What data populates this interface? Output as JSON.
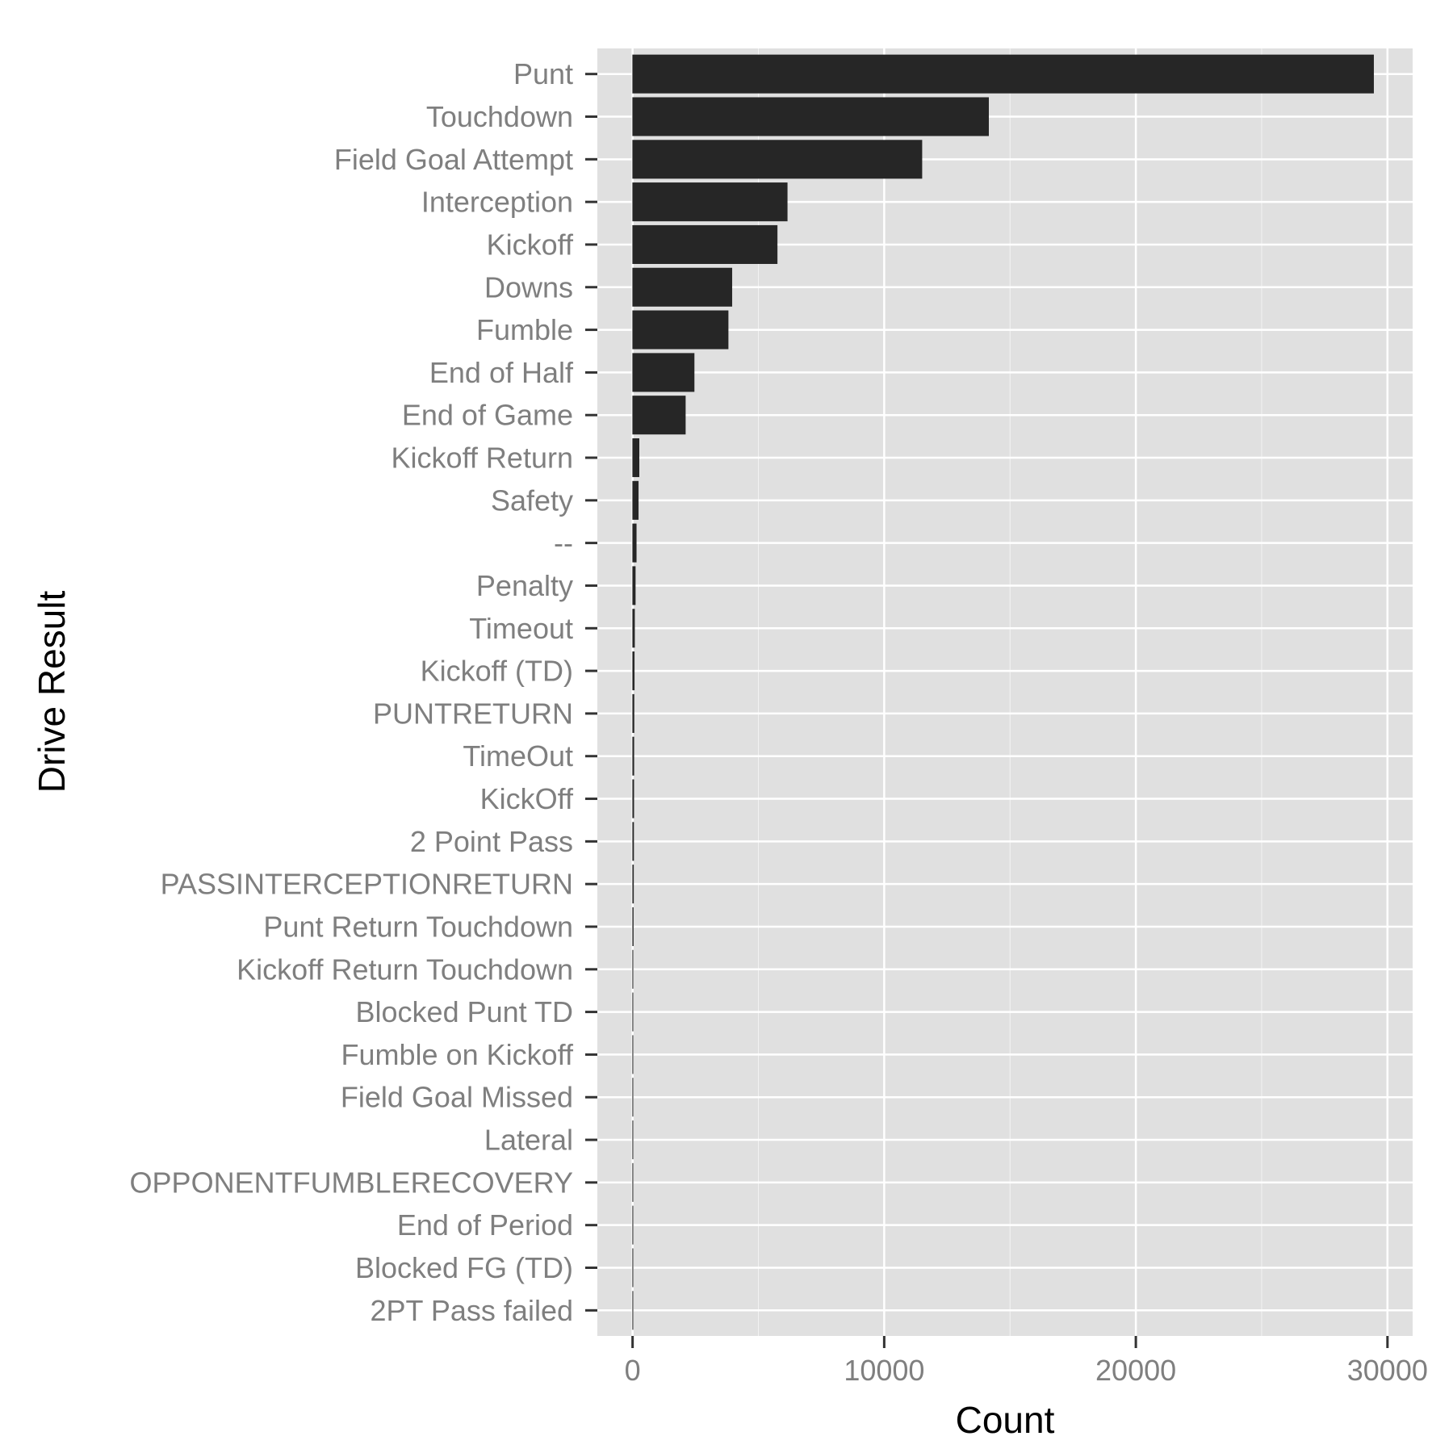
{
  "chart_data": {
    "type": "bar",
    "orientation": "horizontal",
    "xlabel": "Count",
    "ylabel": "Drive Result",
    "xlim": [
      -1400,
      31000
    ],
    "x_ticks": [
      0,
      10000,
      20000,
      30000
    ],
    "x_tick_labels": [
      "0",
      "10000",
      "20000",
      "30000"
    ],
    "grid": true,
    "legend": "none",
    "colors": {
      "bar": "#262626",
      "panel": "#e0e0e0",
      "grid": "#ffffff",
      "tick_text": "#7f7f7f",
      "title_text": "#000000"
    },
    "categories": [
      "Punt",
      "Touchdown",
      "Field Goal Attempt",
      "Interception",
      "Kickoff",
      "Downs",
      "Fumble",
      "End of Half",
      "End of Game",
      "Kickoff Return",
      "Safety",
      "--",
      "Penalty",
      "Timeout",
      "Kickoff (TD)",
      "PUNTRETURN",
      "TimeOut",
      "KickOff",
      "2 Point Pass",
      "PASSINTERCEPTIONRETURN",
      "Punt Return Touchdown",
      "Kickoff Return Touchdown",
      "Blocked Punt TD",
      "Fumble on Kickoff",
      "Field Goal Missed",
      "Lateral",
      "OPPONENTFUMBLERECOVERY",
      "End of Period",
      "Blocked FG (TD)",
      "2PT Pass failed"
    ],
    "values": [
      29450,
      14150,
      11500,
      6150,
      5750,
      3950,
      3800,
      2450,
      2100,
      260,
      230,
      150,
      110,
      80,
      70,
      60,
      55,
      50,
      45,
      40,
      30,
      20,
      15,
      12,
      10,
      8,
      6,
      5,
      4,
      3
    ]
  }
}
